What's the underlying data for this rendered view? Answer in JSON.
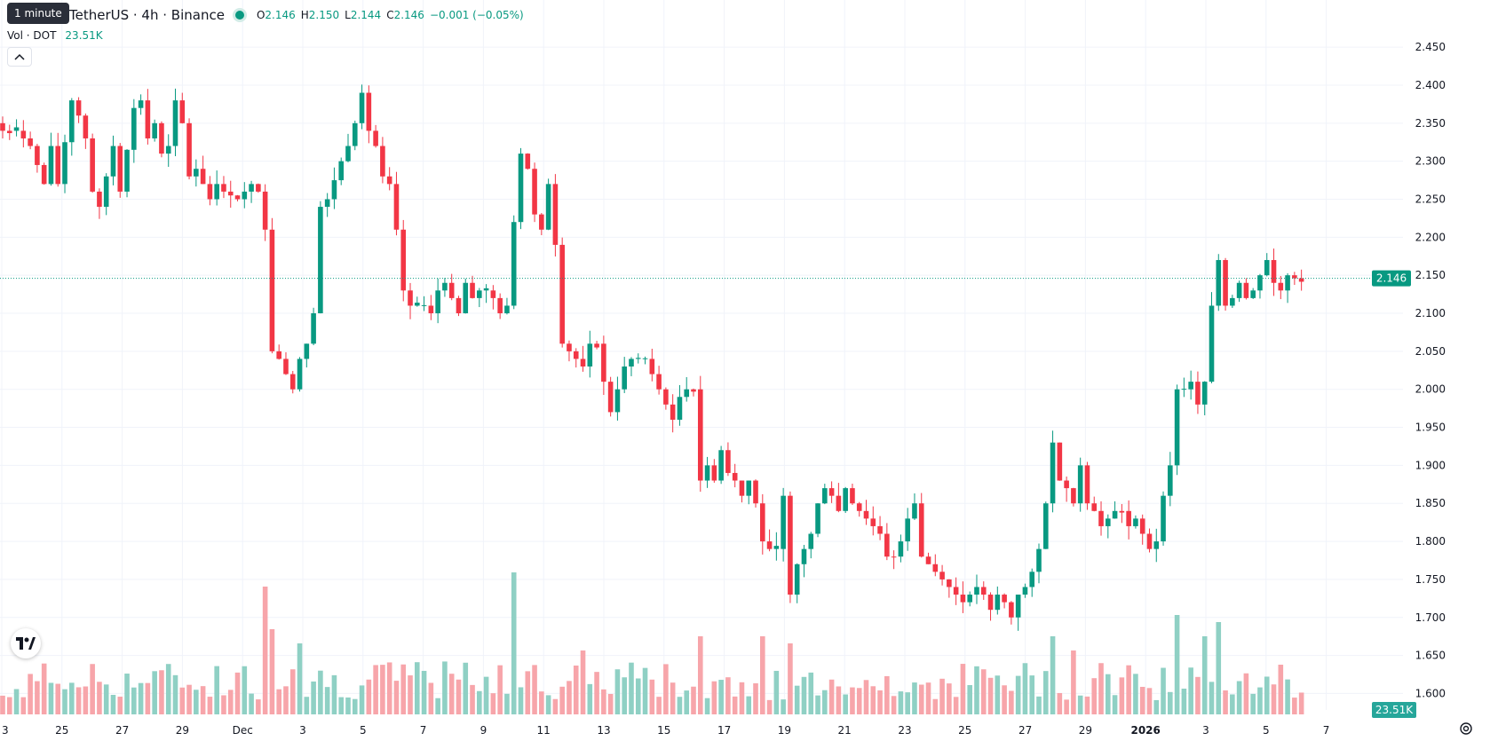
{
  "tooltip": "1 minute",
  "legend": {
    "symbol_title": "TetherUS · 4h · Binance",
    "ohlc": [
      {
        "key": "O",
        "value": "2.146"
      },
      {
        "key": "H",
        "value": "2.150"
      },
      {
        "key": "L",
        "value": "2.144"
      },
      {
        "key": "C",
        "value": "2.146"
      }
    ],
    "change": "−0.001 (−0.05%)"
  },
  "volume_legend": {
    "title": "Vol · DOT",
    "value": "23.51K"
  },
  "price_label": "2.146",
  "volume_label": "23.51K",
  "colors": {
    "up": "#089981",
    "down": "#f23645",
    "up_volume": "#8fd0c4",
    "down_volume": "#f7a5aa",
    "grid": "#f0f3fa",
    "axis_text": "#131722"
  },
  "icons": {
    "collapse": "chevron-up-icon",
    "logo": "tradingview-logo-icon",
    "settings": "gear-icon"
  },
  "chart_data": {
    "type": "candlestick",
    "title": "",
    "y_axis": {
      "min": 1.59,
      "max": 2.47,
      "ticks": [
        "2.450",
        "2.400",
        "2.350",
        "2.300",
        "2.250",
        "2.200",
        "2.150",
        "2.100",
        "2.050",
        "2.000",
        "1.950",
        "1.900",
        "1.850",
        "1.800",
        "1.750",
        "1.700",
        "1.650",
        "1.600"
      ]
    },
    "x_axis": {
      "ticks": [
        "3",
        "25",
        "27",
        "29",
        "Dec",
        "3",
        "5",
        "7",
        "9",
        "11",
        "13",
        "15",
        "17",
        "19",
        "21",
        "23",
        "25",
        "27",
        "29",
        "2026",
        "3",
        "5",
        "7"
      ]
    },
    "last_price": 2.146,
    "grid": true,
    "price_path": [
      [
        0,
        2.34
      ],
      [
        2,
        2.34
      ],
      [
        4,
        2.32
      ],
      [
        6,
        2.27
      ],
      [
        7,
        2.32
      ],
      [
        8,
        2.27
      ],
      [
        10,
        2.38
      ],
      [
        11,
        2.36
      ],
      [
        12,
        2.33
      ],
      [
        13,
        2.26
      ],
      [
        14,
        2.24
      ],
      [
        16,
        2.32
      ],
      [
        17,
        2.26
      ],
      [
        19,
        2.37
      ],
      [
        20,
        2.38
      ],
      [
        21,
        2.33
      ],
      [
        22,
        2.35
      ],
      [
        23,
        2.31
      ],
      [
        24,
        2.32
      ],
      [
        25,
        2.38
      ],
      [
        26,
        2.35
      ],
      [
        27,
        2.28
      ],
      [
        28,
        2.29
      ],
      [
        29,
        2.27
      ],
      [
        30,
        2.25
      ],
      [
        31,
        2.27
      ],
      [
        32,
        2.26
      ],
      [
        34,
        2.25
      ],
      [
        35,
        2.26
      ],
      [
        36,
        2.27
      ],
      [
        37,
        2.26
      ],
      [
        38,
        2.21
      ],
      [
        39,
        2.05
      ],
      [
        40,
        2.04
      ],
      [
        41,
        2.02
      ],
      [
        42,
        2.0
      ],
      [
        43,
        2.04
      ],
      [
        44,
        2.06
      ],
      [
        45,
        2.1
      ],
      [
        46,
        2.24
      ],
      [
        47,
        2.25
      ],
      [
        49,
        2.3
      ],
      [
        50,
        2.32
      ],
      [
        51,
        2.35
      ],
      [
        52,
        2.39
      ],
      [
        53,
        2.34
      ],
      [
        54,
        2.32
      ],
      [
        55,
        2.28
      ],
      [
        56,
        2.27
      ],
      [
        57,
        2.21
      ],
      [
        58,
        2.13
      ],
      [
        59,
        2.11
      ],
      [
        60,
        2.11
      ],
      [
        61,
        2.11
      ],
      [
        62,
        2.1
      ],
      [
        63,
        2.13
      ],
      [
        64,
        2.14
      ],
      [
        65,
        2.12
      ],
      [
        66,
        2.1
      ],
      [
        67,
        2.14
      ],
      [
        68,
        2.12
      ],
      [
        69,
        2.13
      ],
      [
        70,
        2.13
      ],
      [
        71,
        2.12
      ],
      [
        72,
        2.1
      ],
      [
        73,
        2.11
      ],
      [
        74,
        2.22
      ],
      [
        75,
        2.31
      ],
      [
        76,
        2.29
      ],
      [
        77,
        2.23
      ],
      [
        78,
        2.21
      ],
      [
        79,
        2.27
      ],
      [
        80,
        2.19
      ],
      [
        81,
        2.06
      ],
      [
        82,
        2.05
      ],
      [
        83,
        2.04
      ],
      [
        84,
        2.03
      ],
      [
        85,
        2.06
      ],
      [
        86,
        2.06
      ],
      [
        87,
        2.01
      ],
      [
        88,
        1.97
      ],
      [
        89,
        2.0
      ],
      [
        90,
        2.03
      ],
      [
        91,
        2.04
      ],
      [
        93,
        2.04
      ],
      [
        94,
        2.02
      ],
      [
        95,
        2.0
      ],
      [
        96,
        1.98
      ],
      [
        97,
        1.96
      ],
      [
        98,
        1.99
      ],
      [
        99,
        2.0
      ],
      [
        100,
        2.0
      ],
      [
        101,
        1.88
      ],
      [
        102,
        1.9
      ],
      [
        103,
        1.88
      ],
      [
        104,
        1.92
      ],
      [
        105,
        1.89
      ],
      [
        106,
        1.88
      ],
      [
        107,
        1.86
      ],
      [
        108,
        1.88
      ],
      [
        109,
        1.85
      ],
      [
        110,
        1.8
      ],
      [
        111,
        1.79
      ],
      [
        112,
        1.79
      ],
      [
        113,
        1.86
      ],
      [
        114,
        1.73
      ],
      [
        115,
        1.77
      ],
      [
        116,
        1.79
      ],
      [
        117,
        1.81
      ],
      [
        118,
        1.85
      ],
      [
        119,
        1.87
      ],
      [
        120,
        1.86
      ],
      [
        121,
        1.84
      ],
      [
        122,
        1.87
      ],
      [
        123,
        1.85
      ],
      [
        124,
        1.84
      ],
      [
        125,
        1.83
      ],
      [
        126,
        1.82
      ],
      [
        127,
        1.81
      ],
      [
        128,
        1.78
      ],
      [
        129,
        1.78
      ],
      [
        130,
        1.8
      ],
      [
        131,
        1.83
      ],
      [
        132,
        1.85
      ],
      [
        133,
        1.78
      ],
      [
        134,
        1.77
      ],
      [
        135,
        1.76
      ],
      [
        136,
        1.75
      ],
      [
        137,
        1.74
      ],
      [
        138,
        1.73
      ],
      [
        139,
        1.72
      ],
      [
        140,
        1.73
      ],
      [
        141,
        1.74
      ],
      [
        142,
        1.73
      ],
      [
        143,
        1.71
      ],
      [
        144,
        1.73
      ],
      [
        145,
        1.72
      ],
      [
        146,
        1.7
      ],
      [
        147,
        1.73
      ],
      [
        148,
        1.74
      ],
      [
        149,
        1.76
      ],
      [
        150,
        1.79
      ],
      [
        151,
        1.85
      ],
      [
        152,
        1.93
      ],
      [
        153,
        1.88
      ],
      [
        154,
        1.87
      ],
      [
        155,
        1.85
      ],
      [
        156,
        1.9
      ],
      [
        157,
        1.85
      ],
      [
        158,
        1.84
      ],
      [
        159,
        1.82
      ],
      [
        160,
        1.83
      ],
      [
        161,
        1.84
      ],
      [
        162,
        1.84
      ],
      [
        163,
        1.82
      ],
      [
        164,
        1.83
      ],
      [
        165,
        1.81
      ],
      [
        166,
        1.79
      ],
      [
        167,
        1.8
      ],
      [
        168,
        1.86
      ],
      [
        169,
        1.9
      ],
      [
        170,
        2.0
      ],
      [
        171,
        2.0
      ],
      [
        172,
        2.01
      ],
      [
        173,
        1.98
      ],
      [
        174,
        2.01
      ],
      [
        175,
        2.11
      ],
      [
        176,
        2.17
      ],
      [
        177,
        2.11
      ],
      [
        178,
        2.12
      ],
      [
        179,
        2.14
      ],
      [
        180,
        2.12
      ],
      [
        181,
        2.13
      ],
      [
        182,
        2.15
      ],
      [
        183,
        2.17
      ],
      [
        184,
        2.14
      ],
      [
        185,
        2.13
      ],
      [
        186,
        2.15
      ],
      [
        187,
        2.146
      ],
      [
        188,
        2.146
      ]
    ],
    "volume_scale_max": 200,
    "volume_spikes": [
      [
        38,
        180
      ],
      [
        39,
        120
      ],
      [
        43,
        100
      ],
      [
        74,
        200
      ],
      [
        84,
        90
      ],
      [
        101,
        110
      ],
      [
        110,
        110
      ],
      [
        114,
        100
      ],
      [
        152,
        110
      ],
      [
        155,
        90
      ],
      [
        170,
        140
      ],
      [
        174,
        110
      ],
      [
        176,
        130
      ],
      [
        185,
        70
      ]
    ]
  }
}
